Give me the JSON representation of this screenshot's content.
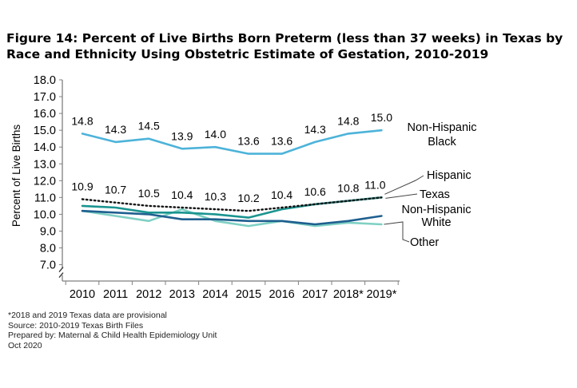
{
  "title": "Figure 14: Percent of Live Births Born Preterm (less than 37 weeks) in Texas by Race and Ethnicity Using Obstetric Estimate of Gestation, 2010-2019",
  "chart_data": {
    "type": "line",
    "ylabel": "Percent of Live Births",
    "xlabel": "",
    "ylim": [
      7.0,
      18.0
    ],
    "y_ticks": [
      "18.0",
      "17.0",
      "16.0",
      "15.0",
      "14.0",
      "13.0",
      "12.0",
      "11.0",
      "10.0",
      "9.0",
      "8.0",
      "7.0"
    ],
    "categories": [
      "2010",
      "2011",
      "2012",
      "2013",
      "2014",
      "2015",
      "2016",
      "2017",
      "2018*",
      "2019*"
    ],
    "axis_break": true,
    "grid": false,
    "series": [
      {
        "name": "Non-Hispanic Black",
        "label_lines": [
          "Non-Hispanic",
          "Black"
        ],
        "color": "#4db3d9",
        "style": "solid",
        "values": [
          14.8,
          14.3,
          14.5,
          13.9,
          14.0,
          13.6,
          13.6,
          14.3,
          14.8,
          15.0
        ],
        "data_labels": [
          "14.8",
          "14.3",
          "14.5",
          "13.9",
          "14.0",
          "13.6",
          "13.6",
          "14.3",
          "14.8",
          "15.0"
        ]
      },
      {
        "name": "Hispanic",
        "label_lines": [
          "Hispanic"
        ],
        "color": "#1a9490",
        "style": "solid",
        "values": [
          10.5,
          10.4,
          10.1,
          10.1,
          10.0,
          9.8,
          10.3,
          10.6,
          10.8,
          11.0
        ],
        "data_labels": []
      },
      {
        "name": "Texas",
        "label_lines": [
          "Texas"
        ],
        "color": "#111111",
        "style": "dotted",
        "values": [
          10.9,
          10.7,
          10.5,
          10.4,
          10.3,
          10.2,
          10.4,
          10.6,
          10.8,
          11.0
        ],
        "data_labels": [
          "10.9",
          "10.7",
          "10.5",
          "10.4",
          "10.3",
          "10.2",
          "10.4",
          "10.6",
          "10.8",
          "11.0"
        ]
      },
      {
        "name": "Non-Hispanic White",
        "label_lines": [
          "Non-Hispanic",
          "White"
        ],
        "color": "#1f5f8f",
        "style": "solid",
        "values": [
          10.2,
          10.1,
          10.0,
          9.7,
          9.7,
          9.6,
          9.6,
          9.4,
          9.6,
          9.9
        ],
        "data_labels": []
      },
      {
        "name": "Other",
        "label_lines": [
          "Other"
        ],
        "color": "#7fd0c4",
        "style": "solid",
        "values": [
          10.2,
          9.9,
          9.6,
          10.3,
          9.6,
          9.3,
          9.6,
          9.3,
          9.5,
          9.4
        ],
        "data_labels": []
      }
    ]
  },
  "notes": [
    "*2018 and 2019 Texas data are provisional",
    "Source: 2010-2019  Texas Birth Files",
    "Prepared by: Maternal & Child Health Epidemiology Unit",
    "Oct 2020"
  ]
}
